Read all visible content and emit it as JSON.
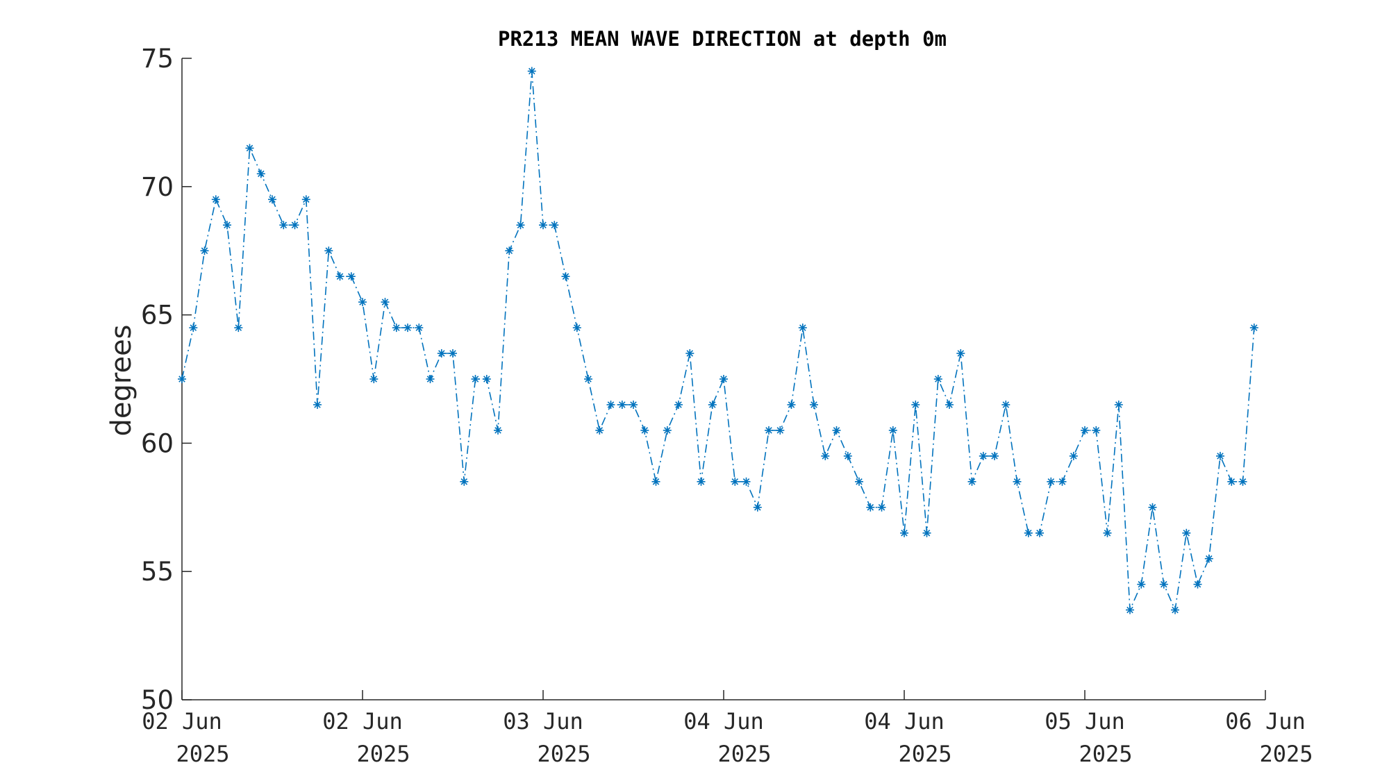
{
  "chart_data": {
    "type": "line",
    "title": "PR213 MEAN WAVE DIRECTION at depth 0m",
    "xlabel": "",
    "ylabel": "degrees",
    "ylim": [
      50,
      75
    ],
    "yticks": [
      50,
      55,
      60,
      65,
      70,
      75
    ],
    "xlim": [
      0,
      96
    ],
    "xticks": [
      {
        "x": 0,
        "line1": "02 Jun",
        "line2": "2025"
      },
      {
        "x": 16,
        "line1": "02 Jun",
        "line2": "2025"
      },
      {
        "x": 32,
        "line1": "03 Jun",
        "line2": "2025"
      },
      {
        "x": 48,
        "line1": "04 Jun",
        "line2": "2025"
      },
      {
        "x": 64,
        "line1": "04 Jun",
        "line2": "2025"
      },
      {
        "x": 80,
        "line1": "05 Jun",
        "line2": "2025"
      },
      {
        "x": 96,
        "line1": "06 Jun",
        "line2": "2025"
      }
    ],
    "grid": false,
    "marker": "asterisk",
    "line_style": "dash-dot",
    "color": "#0072BD",
    "series": [
      {
        "values": [
          62.5,
          64.5,
          67.5,
          69.5,
          68.5,
          64.5,
          71.5,
          70.5,
          69.5,
          68.5,
          68.5,
          69.5,
          61.5,
          67.5,
          66.5,
          66.5,
          65.5,
          62.5,
          65.5,
          64.5,
          64.5,
          64.5,
          62.5,
          63.5,
          63.5,
          58.5,
          62.5,
          62.5,
          60.5,
          67.5,
          68.5,
          74.5,
          68.5,
          68.5,
          66.5,
          64.5,
          62.5,
          60.5,
          61.5,
          61.5,
          61.5,
          60.5,
          58.5,
          60.5,
          61.5,
          63.5,
          58.5,
          61.5,
          62.5,
          58.5,
          58.5,
          57.5,
          60.5,
          60.5,
          61.5,
          64.5,
          61.5,
          59.5,
          60.5,
          59.5,
          58.5,
          57.5,
          57.5,
          60.5,
          56.5,
          61.5,
          56.5,
          62.5,
          61.5,
          63.5,
          58.5,
          59.5,
          59.5,
          61.5,
          58.5,
          56.5,
          56.5,
          58.5,
          58.5,
          59.5,
          60.5,
          60.5,
          56.5,
          61.5,
          53.5,
          54.5,
          57.5,
          54.5,
          53.5,
          56.5,
          54.5,
          55.5,
          59.5,
          58.5,
          58.5,
          64.5
        ]
      }
    ]
  }
}
